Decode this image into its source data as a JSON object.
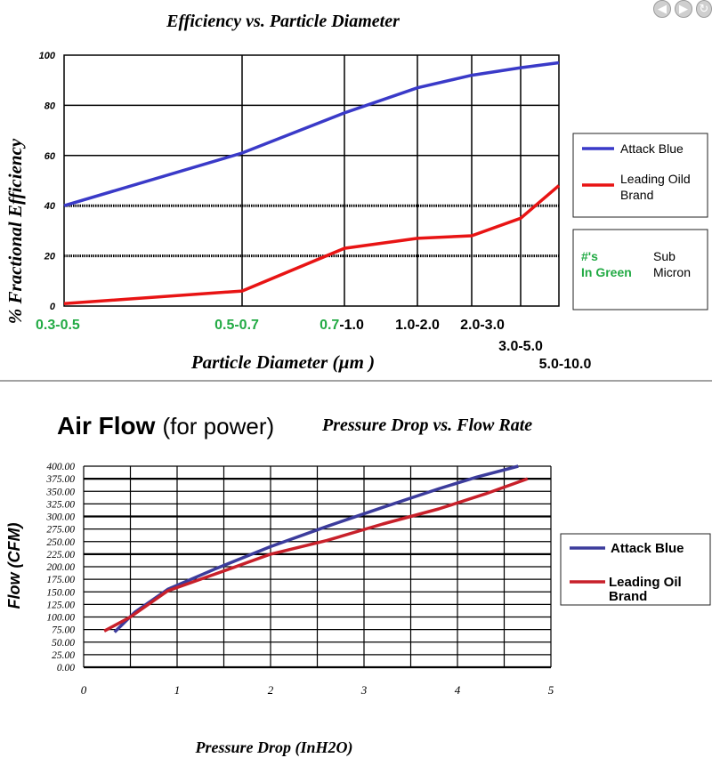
{
  "nav": {
    "prev_icon": "◀",
    "next_icon": "▶"
  },
  "colors": {
    "blue": "#3a3ac8",
    "red": "#e81414",
    "green": "#22aa44",
    "dark_red": "#c8202a",
    "dark_blue": "#3c3c9c"
  },
  "chart_data": [
    {
      "type": "line",
      "title": "Efficiency vs. Particle Diameter",
      "xlabel": "Particle Diameter (µm )",
      "ylabel": "% Fractional Efficiency",
      "ylim": [
        0,
        100
      ],
      "yticks": [
        "0",
        "20",
        "40",
        "60",
        "80",
        "100"
      ],
      "categories": [
        "0.3-0.5",
        "0.5-0.7",
        "0.7-1.0",
        "1.0-2.0",
        "2.0-3.0",
        "3.0-5.0",
        "5.0-10.0"
      ],
      "category_label_parts": [
        [
          "0.3-0.5",
          ""
        ],
        [
          "0.5-0.7",
          ""
        ],
        [
          "0.7",
          "-1.0"
        ],
        [
          "",
          "1.0-2.0"
        ],
        [
          "",
          "2.0-3.0"
        ],
        [
          "",
          "3.0-5.0"
        ],
        [
          "",
          "5.0-10.0"
        ]
      ],
      "series": [
        {
          "name": "Attack Blue",
          "values": [
            40,
            61,
            77,
            87,
            92,
            95,
            97
          ]
        },
        {
          "name": "Leading Oild Brand",
          "values": [
            1,
            6,
            23,
            27,
            28,
            35,
            48
          ]
        }
      ],
      "legend": {
        "placement": "right"
      },
      "note": {
        "green_text": "#'s In Green",
        "black_text": "Sub Micron"
      }
    },
    {
      "type": "line",
      "heading_bold": "Air Flow",
      "heading_normal": "(for power)",
      "title": "Pressure Drop vs. Flow Rate",
      "xlabel": "Pressure Drop (InH2O)",
      "ylabel": "Flow (CFM)",
      "xlim": [
        0,
        5
      ],
      "ylim": [
        0,
        400
      ],
      "xticks": [
        "0",
        "1",
        "2",
        "3",
        "4",
        "5"
      ],
      "yticks": [
        "0.00",
        "25.00",
        "50.00",
        "75.00",
        "100.00",
        "125.00",
        "150.00",
        "175.00",
        "200.00",
        "225.00",
        "250.00",
        "275.00",
        "300.00",
        "325.00",
        "350.00",
        "375.00",
        "400.00"
      ],
      "series": [
        {
          "name": "Attack Blue",
          "points": [
            [
              0.33,
              70
            ],
            [
              0.55,
              110
            ],
            [
              0.9,
              155
            ],
            [
              1.4,
              195
            ],
            [
              2.0,
              240
            ],
            [
              2.6,
              280
            ],
            [
              3.2,
              318
            ],
            [
              3.8,
              355
            ],
            [
              4.2,
              378
            ],
            [
              4.65,
              400
            ]
          ]
        },
        {
          "name": "Leading Oil Brand",
          "points": [
            [
              0.22,
              72
            ],
            [
              0.5,
              100
            ],
            [
              0.9,
              152
            ],
            [
              1.4,
              185
            ],
            [
              2.0,
              225
            ],
            [
              2.6,
              252
            ],
            [
              3.2,
              285
            ],
            [
              3.8,
              315
            ],
            [
              4.3,
              345
            ],
            [
              4.75,
              375
            ]
          ]
        }
      ],
      "legend": {
        "placement": "right"
      }
    }
  ]
}
